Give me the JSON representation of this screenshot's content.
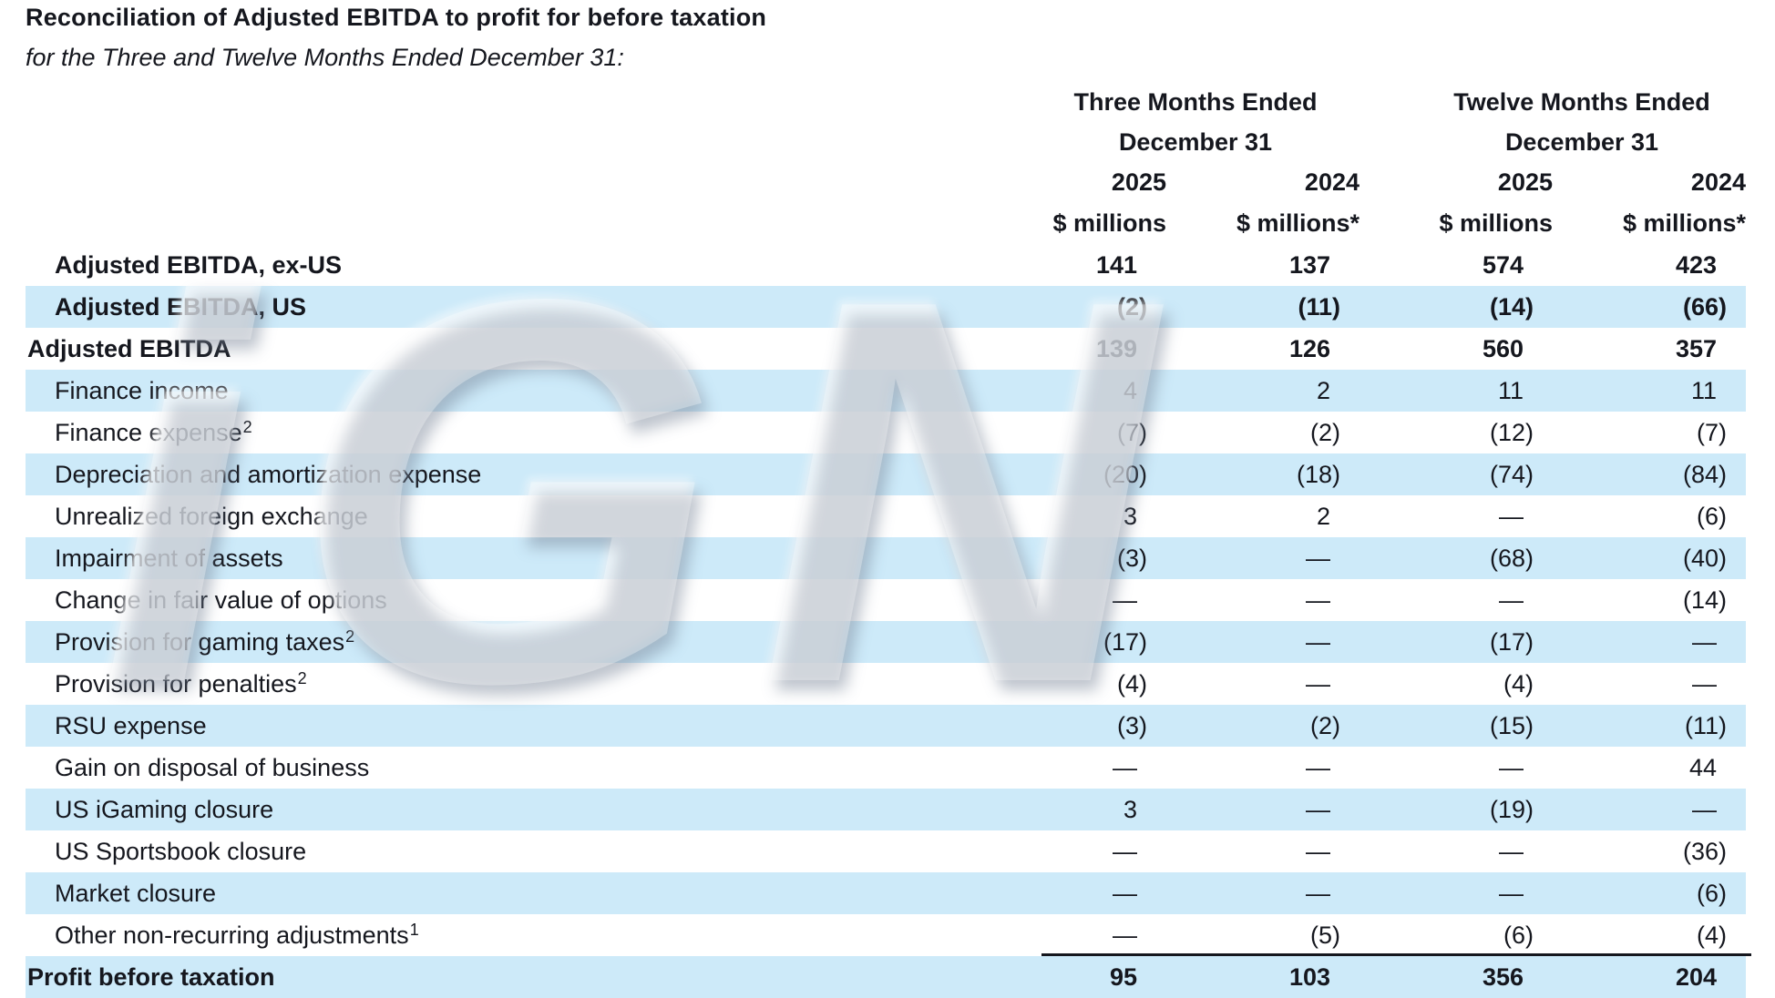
{
  "title": "Reconciliation of Adjusted EBITDA to profit for before taxation",
  "subtitle": "for the Three and Twelve Months Ended December 31:",
  "watermark": "iGN",
  "colors": {
    "band": "#cdeaf9",
    "text": "#15171e",
    "rule": "#15171e"
  },
  "table": {
    "col_groups": [
      {
        "line1": "Three Months Ended",
        "line2": "December 31"
      },
      {
        "line1": "Twelve Months Ended",
        "line2": "December 31"
      }
    ],
    "columns": [
      {
        "year": "2025",
        "unit": "$ millions"
      },
      {
        "year": "2024",
        "unit": "$ millions*"
      },
      {
        "year": "2025",
        "unit": "$ millions"
      },
      {
        "year": "2024",
        "unit": "$ millions*"
      }
    ],
    "rows": [
      {
        "label": "Adjusted EBITDA, ex-US",
        "sup": "",
        "values": [
          "141",
          "137",
          "574",
          "423"
        ],
        "bold": true,
        "indent": true,
        "shaded": false
      },
      {
        "label": "Adjusted EBITDA, US",
        "sup": "",
        "values": [
          "(2)",
          "(11)",
          "(14)",
          "(66)"
        ],
        "bold": true,
        "indent": true,
        "shaded": true
      },
      {
        "label": "Adjusted EBITDA",
        "sup": "",
        "values": [
          "139",
          "126",
          "560",
          "357"
        ],
        "bold": true,
        "indent": false,
        "shaded": false
      },
      {
        "label": "Finance income",
        "sup": "",
        "values": [
          "4",
          "2",
          "11",
          "11"
        ],
        "bold": false,
        "indent": true,
        "shaded": true
      },
      {
        "label": "Finance expense",
        "sup": "2",
        "values": [
          "(7)",
          "(2)",
          "(12)",
          "(7)"
        ],
        "bold": false,
        "indent": true,
        "shaded": false
      },
      {
        "label": "Depreciation and amortization expense",
        "sup": "",
        "values": [
          "(20)",
          "(18)",
          "(74)",
          "(84)"
        ],
        "bold": false,
        "indent": true,
        "shaded": true
      },
      {
        "label": "Unrealized foreign exchange",
        "sup": "",
        "values": [
          "3",
          "2",
          "—",
          "(6)"
        ],
        "bold": false,
        "indent": true,
        "shaded": false
      },
      {
        "label": "Impairment of assets",
        "sup": "",
        "values": [
          "(3)",
          "—",
          "(68)",
          "(40)"
        ],
        "bold": false,
        "indent": true,
        "shaded": true
      },
      {
        "label": "Change in fair value of options",
        "sup": "",
        "values": [
          "—",
          "—",
          "—",
          "(14)"
        ],
        "bold": false,
        "indent": true,
        "shaded": false
      },
      {
        "label": "Provision for gaming taxes",
        "sup": "2",
        "values": [
          "(17)",
          "—",
          "(17)",
          "—"
        ],
        "bold": false,
        "indent": true,
        "shaded": true
      },
      {
        "label": "Provision for penalties",
        "sup": "2",
        "values": [
          "(4)",
          "—",
          "(4)",
          "—"
        ],
        "bold": false,
        "indent": true,
        "shaded": false
      },
      {
        "label": "RSU expense",
        "sup": "",
        "values": [
          "(3)",
          "(2)",
          "(15)",
          "(11)"
        ],
        "bold": false,
        "indent": true,
        "shaded": true
      },
      {
        "label": "Gain on disposal of business",
        "sup": "",
        "values": [
          "—",
          "—",
          "—",
          "44"
        ],
        "bold": false,
        "indent": true,
        "shaded": false
      },
      {
        "label": "US iGaming closure",
        "sup": "",
        "values": [
          "3",
          "—",
          "(19)",
          "—"
        ],
        "bold": false,
        "indent": true,
        "shaded": true
      },
      {
        "label": "US Sportsbook closure",
        "sup": "",
        "values": [
          "—",
          "—",
          "—",
          "(36)"
        ],
        "bold": false,
        "indent": true,
        "shaded": false
      },
      {
        "label": "Market closure",
        "sup": "",
        "values": [
          "—",
          "—",
          "—",
          "(6)"
        ],
        "bold": false,
        "indent": true,
        "shaded": true
      },
      {
        "label": "Other non-recurring adjustments",
        "sup": "1",
        "values": [
          "—",
          "(5)",
          "(6)",
          "(4)"
        ],
        "bold": false,
        "indent": true,
        "shaded": false
      },
      {
        "label": "Profit before taxation",
        "sup": "",
        "values": [
          "95",
          "103",
          "356",
          "204"
        ],
        "bold": true,
        "indent": false,
        "shaded": true,
        "topline": true
      }
    ]
  }
}
